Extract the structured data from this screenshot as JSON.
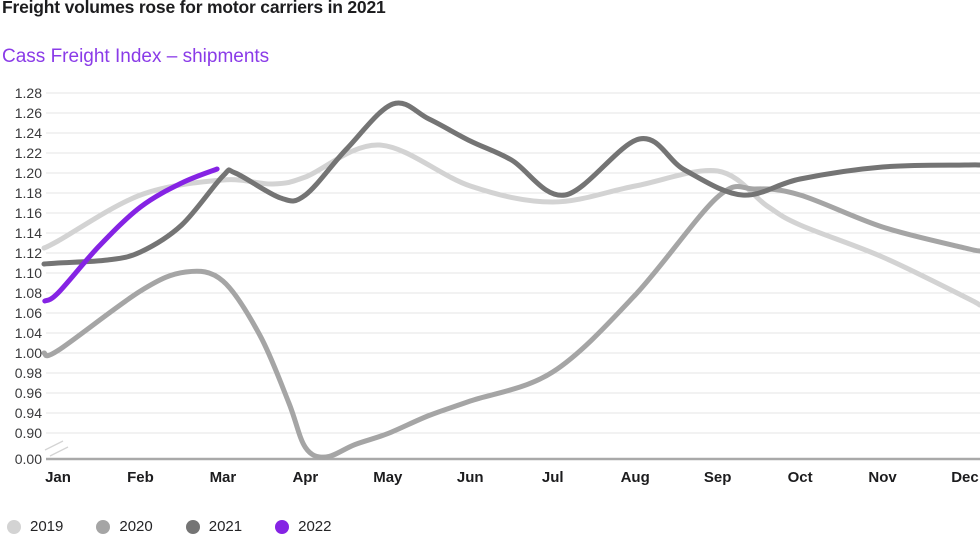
{
  "header": {
    "title": "Freight volumes rose for motor carriers in 2021",
    "subtitle": "Cass Freight Index – shipments"
  },
  "colors": {
    "title_text": "#1d1d1f",
    "subtitle_accent": "#8a3be8",
    "gridline": "#e6e6e6",
    "baseline": "#a9a9a9",
    "axis_break_mark": "#d4d4d4",
    "y_tick_text": "#39393b",
    "month_text": "#1c1c1e",
    "legend_text": "#242426"
  },
  "chart_data": {
    "type": "line",
    "title": "Freight volumes rose for motor carriers in 2021",
    "subtitle": "Cass Freight Index – shipments",
    "x_categories": [
      "Jan",
      "Feb",
      "Mar",
      "Apr",
      "May",
      "Jun",
      "Jul",
      "Aug",
      "Sep",
      "Oct",
      "Nov",
      "Dec"
    ],
    "y_axis": {
      "tick_labels": [
        "1.28",
        "1.26",
        "1.24",
        "1.22",
        "1.20",
        "1.18",
        "1.16",
        "1.14",
        "1.12",
        "1.10",
        "1.08",
        "1.06",
        "1.04",
        "1.00",
        "0.98",
        "0.96",
        "0.94",
        "0.90",
        "0.00"
      ],
      "axis_break_between": [
        "0.90",
        "0.00"
      ],
      "grid": "horizontal-only"
    },
    "legend_position": "bottom-left",
    "series": [
      {
        "name": "2019",
        "color": "#d3d3d3",
        "monthly_values": [
          1.13,
          1.18,
          1.19,
          1.2,
          1.23,
          1.19,
          1.17,
          1.19,
          1.2,
          1.15,
          1.12,
          1.08
        ],
        "samples": [
          [
            -0.17,
            1.125
          ],
          [
            0,
            1.132
          ],
          [
            1,
            1.178
          ],
          [
            2,
            1.193
          ],
          [
            2.6,
            1.189
          ],
          [
            3,
            1.196
          ],
          [
            3.9,
            1.228
          ],
          [
            5,
            1.187
          ],
          [
            6,
            1.171
          ],
          [
            7,
            1.187
          ],
          [
            8,
            1.202
          ],
          [
            8.6,
            1.167
          ],
          [
            9,
            1.148
          ],
          [
            10,
            1.116
          ],
          [
            11,
            1.076
          ],
          [
            11.18,
            1.068
          ]
        ]
      },
      {
        "name": "2020",
        "color": "#a5a5a5",
        "monthly_values": [
          1.0,
          1.08,
          1.09,
          0.1,
          0.88,
          0.95,
          0.98,
          1.08,
          1.18,
          1.18,
          1.15,
          1.12
        ],
        "samples": [
          [
            -0.17,
            1.0
          ],
          [
            0,
            1.005
          ],
          [
            1,
            1.082
          ],
          [
            1.55,
            1.101
          ],
          [
            2,
            1.092
          ],
          [
            2.45,
            1.035
          ],
          [
            2.8,
            0.95
          ],
          [
            3,
            0.4
          ],
          [
            3.25,
            0.07
          ],
          [
            3.6,
            0.5
          ],
          [
            4,
            0.88
          ],
          [
            4.5,
            0.935
          ],
          [
            5,
            0.952
          ],
          [
            6,
            0.981
          ],
          [
            7,
            1.078
          ],
          [
            8,
            1.176
          ],
          [
            8.45,
            1.184
          ],
          [
            9,
            1.178
          ],
          [
            10,
            1.146
          ],
          [
            11,
            1.125
          ],
          [
            11.18,
            1.122
          ]
        ]
      },
      {
        "name": "2021",
        "color": "#747474",
        "monthly_values": [
          1.11,
          1.12,
          1.2,
          1.18,
          1.27,
          1.23,
          1.18,
          1.23,
          1.18,
          1.19,
          1.21,
          1.21
        ],
        "samples": [
          [
            -0.17,
            1.109
          ],
          [
            0,
            1.11
          ],
          [
            0.6,
            1.113
          ],
          [
            1,
            1.121
          ],
          [
            1.5,
            1.148
          ],
          [
            2,
            1.197
          ],
          [
            2.15,
            1.2
          ],
          [
            2.7,
            1.175
          ],
          [
            3,
            1.178
          ],
          [
            3.5,
            1.224
          ],
          [
            4.06,
            1.269
          ],
          [
            4.5,
            1.254
          ],
          [
            5,
            1.232
          ],
          [
            5.5,
            1.213
          ],
          [
            6.15,
            1.178
          ],
          [
            7.05,
            1.234
          ],
          [
            7.6,
            1.203
          ],
          [
            8.3,
            1.178
          ],
          [
            9,
            1.194
          ],
          [
            10,
            1.206
          ],
          [
            11,
            1.208
          ],
          [
            11.18,
            1.208
          ]
        ]
      },
      {
        "name": "2022",
        "color": "#8523e4",
        "monthly_values": [
          1.08,
          1.17,
          1.2,
          null,
          null,
          null,
          null,
          null,
          null,
          null,
          null,
          null
        ],
        "samples": [
          [
            -0.16,
            1.072
          ],
          [
            0,
            1.08
          ],
          [
            0.5,
            1.127
          ],
          [
            1,
            1.166
          ],
          [
            1.5,
            1.19
          ],
          [
            1.93,
            1.204
          ]
        ]
      }
    ]
  }
}
